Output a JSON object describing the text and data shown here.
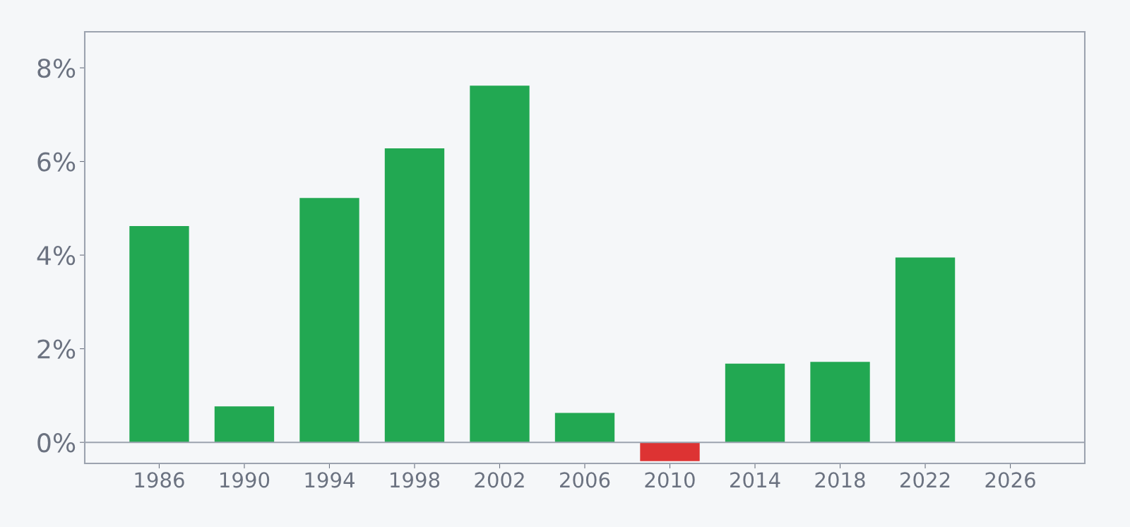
{
  "chart_data": {
    "type": "bar",
    "x": [
      1986,
      1990,
      1994,
      1998,
      2002,
      2006,
      2010,
      2014,
      2018,
      2022
    ],
    "values": [
      4.62,
      0.77,
      5.22,
      6.28,
      7.62,
      0.63,
      -0.4,
      1.68,
      1.72,
      3.95
    ],
    "colors": [
      "#22a852",
      "#22a852",
      "#22a852",
      "#22a852",
      "#22a852",
      "#22a852",
      "#dd3333",
      "#22a852",
      "#22a852",
      "#22a852"
    ],
    "xlim": [
      1982.5,
      2029.5
    ],
    "xticks": [
      1986,
      1990,
      1994,
      1998,
      2002,
      2006,
      2010,
      2014,
      2018,
      2022,
      2026
    ],
    "ylim": [
      -0.45,
      8.77
    ],
    "yticks": [
      {
        "value": 0,
        "label": "0%"
      },
      {
        "value": 2,
        "label": "2%"
      },
      {
        "value": 4,
        "label": "4%"
      },
      {
        "value": 6,
        "label": "6%"
      },
      {
        "value": 8,
        "label": "8%"
      }
    ],
    "ref_lines": [
      {
        "axis": "y",
        "value": 0,
        "color": "#9ca3af"
      }
    ],
    "grid": false,
    "legend": false
  }
}
